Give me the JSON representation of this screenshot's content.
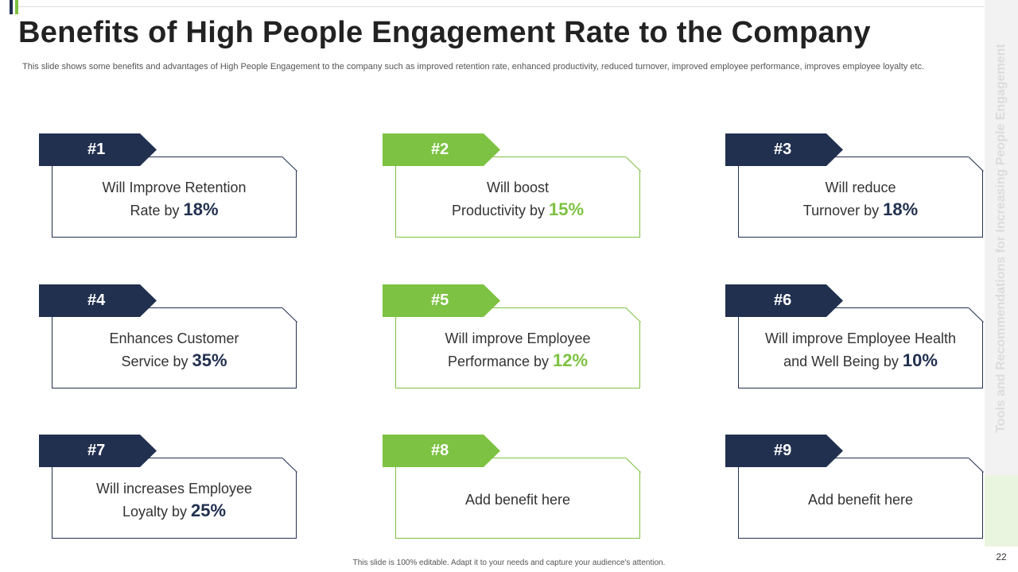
{
  "slide": {
    "title": "Benefits of High People Engagement Rate to the Company",
    "subtitle": "This slide shows some benefits and advantages of High People Engagement to the company such as improved retention rate, enhanced productivity, reduced turnover, improved employee performance, improves employee loyalty etc.",
    "side_label": "Tools and Recommendations for Increasing People Engagement",
    "page_number": "22",
    "footer": "This slide is 100% editable. Adapt it to your needs and capture your audience's attention."
  },
  "colors": {
    "navy": "#223050",
    "green": "#7dc242"
  },
  "cards": [
    {
      "tag": "#1",
      "line1": "Will Improve Retention",
      "line2": "Rate by ",
      "pct": "18%"
    },
    {
      "tag": "#2",
      "line1": "Will boost",
      "line2": "Productivity by ",
      "pct": "15%"
    },
    {
      "tag": "#3",
      "line1": "Will reduce",
      "line2": "Turnover by ",
      "pct": "18%"
    },
    {
      "tag": "#4",
      "line1": "Enhances Customer",
      "line2": "Service by ",
      "pct": "35%"
    },
    {
      "tag": "#5",
      "line1": "Will improve Employee",
      "line2": "Performance by ",
      "pct": "12%"
    },
    {
      "tag": "#6",
      "line1": "Will improve Employee Health",
      "line2": "and Well Being by ",
      "pct": "10%"
    },
    {
      "tag": "#7",
      "line1": "Will increases Employee",
      "line2": "Loyalty by ",
      "pct": "25%"
    },
    {
      "tag": "#8",
      "text": "Add benefit here"
    },
    {
      "tag": "#9",
      "text": "Add benefit here"
    }
  ]
}
